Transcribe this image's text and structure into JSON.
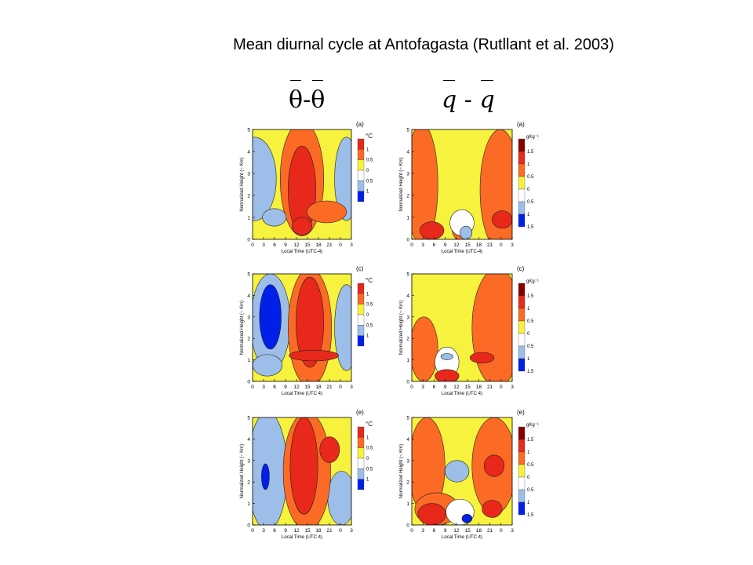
{
  "slide": {
    "title": "Mean diurnal cycle at Antofagasta (Rutllant et al. 2003)",
    "left_symbol": {
      "a": "θ",
      "sep": "-",
      "b": "θ"
    },
    "right_symbol": {
      "a": "q",
      "sep": " - ",
      "b": "q"
    }
  },
  "colors": {
    "dark_red": "#8b0000",
    "red": "#e8281a",
    "orange": "#fb6b25",
    "yellow": "#f7f23d",
    "white": "#ffffff",
    "light_blue": "#9dbee8",
    "blue": "#0020e8"
  },
  "chart_data": [
    {
      "type": "contour",
      "panel_label": "(a)",
      "variable": "theta",
      "unit": "°C",
      "ylabel": "Normalized Height (~ Km)",
      "xlabel": "Local Time (UTC-4)",
      "x_ticks": [
        "0",
        "3",
        "6",
        "9",
        "12",
        "15",
        "18",
        "21",
        "0",
        "3"
      ],
      "y_ticks": [
        "0",
        "1",
        "2",
        "3",
        "4",
        "5"
      ],
      "colorbar_ticks": [
        "1",
        "0.5",
        "0",
        "0.5",
        "1"
      ],
      "xlim": [
        0,
        27
      ],
      "ylim": [
        0,
        5
      ]
    },
    {
      "type": "contour",
      "panel_label": "(a)",
      "variable": "q",
      "unit": "gKg⁻¹",
      "ylabel": "Normalized Height (~ Km)",
      "xlabel": "Local Time (UTC-4)",
      "x_ticks": [
        "0",
        "3",
        "6",
        "9",
        "12",
        "15",
        "18",
        "21",
        "0",
        "3"
      ],
      "y_ticks": [
        "0",
        "1",
        "2",
        "3",
        "4",
        "5"
      ],
      "colorbar_ticks": [
        "1.5",
        "1",
        "0.5",
        "0",
        "0.5",
        "1",
        "1.5"
      ],
      "xlim": [
        0,
        27
      ],
      "ylim": [
        0,
        5
      ]
    },
    {
      "type": "contour",
      "panel_label": "(c)",
      "variable": "theta",
      "unit": "°C",
      "ylabel": "Normalized Height (~ Km)",
      "xlabel": "Local Time (UTC 4)",
      "x_ticks": [
        "0",
        "3",
        "6",
        "9",
        "12",
        "15",
        "18",
        "21",
        "0",
        "3"
      ],
      "y_ticks": [
        "0",
        "1",
        "2",
        "3",
        "4",
        "5"
      ],
      "colorbar_ticks": [
        "1",
        "0.5",
        "0",
        "0.5",
        "1"
      ],
      "xlim": [
        0,
        27
      ],
      "ylim": [
        0,
        5
      ]
    },
    {
      "type": "contour",
      "panel_label": "(c)",
      "variable": "q",
      "unit": "gKg⁻¹",
      "ylabel": "Normalized Height (~ Km)",
      "xlabel": "Local Time (UTC 4)",
      "x_ticks": [
        "0",
        "3",
        "6",
        "9",
        "12",
        "15",
        "18",
        "21",
        "0",
        "3"
      ],
      "y_ticks": [
        "0",
        "1",
        "2",
        "3",
        "4",
        "5"
      ],
      "colorbar_ticks": [
        "1.5",
        "1",
        "0.5",
        "0",
        "0.5",
        "1",
        "1.5"
      ],
      "xlim": [
        0,
        27
      ],
      "ylim": [
        0,
        5
      ]
    },
    {
      "type": "contour",
      "panel_label": "(e)",
      "variable": "theta",
      "unit": "°C",
      "ylabel": "Normalized Height (~ Km)",
      "xlabel": "Local Time (UTC 4)",
      "x_ticks": [
        "0",
        "3",
        "6",
        "9",
        "12",
        "15",
        "18",
        "21",
        "0",
        "3"
      ],
      "y_ticks": [
        "0",
        "1",
        "2",
        "3",
        "4",
        "5"
      ],
      "colorbar_ticks": [
        "1",
        "0.5",
        "0",
        "0.5",
        "1"
      ],
      "xlim": [
        0,
        27
      ],
      "ylim": [
        0,
        5
      ]
    },
    {
      "type": "contour",
      "panel_label": "(e)",
      "variable": "q",
      "unit": "gKg⁻¹",
      "ylabel": "Normalized Height (~ Km)",
      "xlabel": "Local Time (UTC 4)",
      "x_ticks": [
        "0",
        "3",
        "6",
        "9",
        "12",
        "15",
        "18",
        "21",
        "0",
        "3"
      ],
      "y_ticks": [
        "0",
        "1",
        "2",
        "3",
        "4",
        "5"
      ],
      "colorbar_ticks": [
        "1.5",
        "1",
        "0.5",
        "0",
        "0.5",
        "1",
        "1.5"
      ],
      "xlim": [
        0,
        27
      ],
      "ylim": [
        0,
        5
      ]
    }
  ]
}
